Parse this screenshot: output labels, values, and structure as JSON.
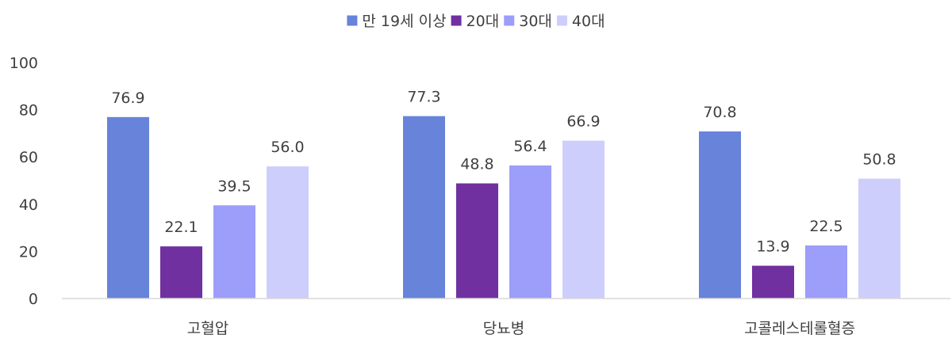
{
  "chart_data": {
    "type": "bar",
    "title": "",
    "xlabel": "",
    "ylabel": "",
    "categories": [
      "고혈압",
      "당뇨병",
      "고콜레스테롤혈증"
    ],
    "series": [
      {
        "name": "만 19세 이상",
        "color": "#6783DA",
        "values": [
          76.9,
          77.3,
          70.8
        ],
        "labels": [
          "76.9",
          "77.3",
          "70.8"
        ]
      },
      {
        "name": "20대",
        "color": "#7030A0",
        "values": [
          22.1,
          48.8,
          13.9
        ],
        "labels": [
          "22.1",
          "48.8",
          "13.9"
        ]
      },
      {
        "name": "30대",
        "color": "#9D9DFA",
        "values": [
          39.5,
          56.4,
          22.5
        ],
        "labels": [
          "39.5",
          "56.4",
          "22.5"
        ]
      },
      {
        "name": "40대",
        "color": "#CECEFC",
        "values": [
          56.0,
          66.9,
          50.8
        ],
        "labels": [
          "56.0",
          "66.9",
          "50.8"
        ]
      }
    ],
    "ylim": [
      0,
      100
    ],
    "yticks": [
      0,
      20,
      40,
      60,
      80,
      100
    ],
    "grid": false,
    "legend_position": "top-center",
    "axis_color": "#D9D9D9",
    "text_color": "#404040"
  }
}
